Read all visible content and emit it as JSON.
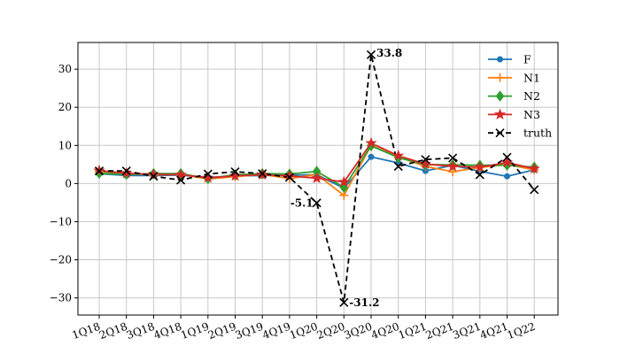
{
  "chart_data": {
    "type": "line",
    "title": "",
    "xlabel": "",
    "ylabel": "",
    "categories": [
      "1Q18",
      "2Q18",
      "3Q18",
      "4Q18",
      "1Q19",
      "2Q19",
      "3Q19",
      "4Q19",
      "1Q20",
      "2Q20",
      "3Q20",
      "4Q20",
      "1Q21",
      "2Q21",
      "3Q21",
      "4Q21",
      "1Q22"
    ],
    "ylim": [
      -34.5,
      37
    ],
    "yticks": [
      -30,
      -20,
      -10,
      0,
      10,
      20,
      30
    ],
    "ytick_labels": [
      "−30",
      "−20",
      "−10",
      "0",
      "10",
      "20",
      "30"
    ],
    "grid": true,
    "legend_position": "top-right",
    "series": [
      {
        "name": "F",
        "color": "#1f77b4",
        "marker": "circle",
        "dashed": false,
        "values": [
          2.6,
          2.1,
          2.1,
          2.2,
          1.6,
          2.0,
          2.1,
          2.2,
          2.3,
          -1.2,
          7.0,
          5.4,
          3.3,
          4.8,
          3.2,
          1.9,
          3.6
        ]
      },
      {
        "name": "N1",
        "color": "#ff7f0e",
        "marker": "plus",
        "dashed": false,
        "values": [
          3.2,
          2.6,
          2.3,
          2.4,
          1.2,
          1.8,
          2.4,
          1.3,
          2.4,
          -3.1,
          10.0,
          7.0,
          4.5,
          3.1,
          4.2,
          5.0,
          3.6
        ]
      },
      {
        "name": "N2",
        "color": "#2ca02c",
        "marker": "diamond",
        "dashed": false,
        "values": [
          2.7,
          2.4,
          2.6,
          2.6,
          1.3,
          2.3,
          2.6,
          2.5,
          3.2,
          -1.0,
          9.9,
          6.8,
          5.0,
          4.9,
          4.8,
          4.8,
          4.3
        ]
      },
      {
        "name": "N3",
        "color": "#d62728",
        "marker": "star",
        "dashed": false,
        "values": [
          3.4,
          2.7,
          2.4,
          2.3,
          1.5,
          2.0,
          2.3,
          2.0,
          1.4,
          0.4,
          10.6,
          7.3,
          5.1,
          4.5,
          4.3,
          5.5,
          3.9
        ]
      },
      {
        "name": "truth",
        "color": "#000000",
        "marker": "x",
        "dashed": true,
        "values": [
          3.3,
          3.3,
          1.9,
          0.9,
          2.5,
          3.1,
          2.6,
          1.6,
          -5.1,
          -31.2,
          33.8,
          4.5,
          6.3,
          6.7,
          2.3,
          6.9,
          -1.6
        ]
      }
    ],
    "annotations": [
      {
        "text": "-5.1",
        "category": "1Q20",
        "value": -5.1
      },
      {
        "text": "-31.2",
        "category": "2Q20",
        "value": -31.2
      },
      {
        "text": "33.8",
        "category": "3Q20",
        "value": 33.8
      }
    ]
  }
}
